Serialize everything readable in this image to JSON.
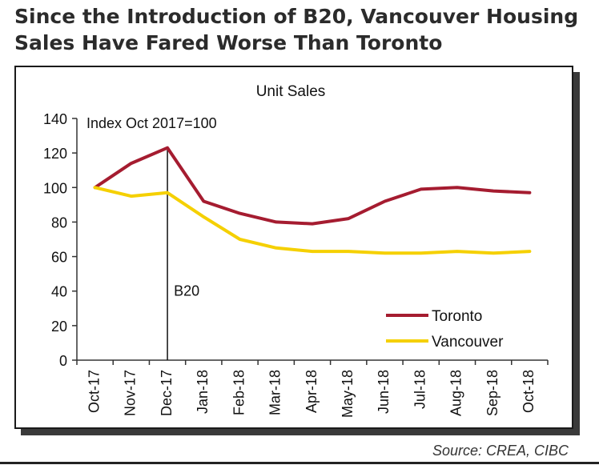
{
  "headline": "Since the Introduction of B20, Vancouver Housing Sales Have Fared Worse Than Toronto",
  "source": "Source: CREA, CIBC",
  "chart_data": {
    "type": "line",
    "title": "Unit Sales",
    "index_note": "Index Oct 2017=100",
    "marker": {
      "label": "B20",
      "category": "Dec-17"
    },
    "categories": [
      "Oct-17",
      "Nov-17",
      "Dec-17",
      "Jan-18",
      "Feb-18",
      "Mar-18",
      "Apr-18",
      "May-18",
      "Jun-18",
      "Jul-18",
      "Aug-18",
      "Sep-18",
      "Oct-18"
    ],
    "ylim": [
      0,
      140
    ],
    "yticks": [
      0,
      20,
      40,
      60,
      80,
      100,
      120,
      140
    ],
    "grid": false,
    "legend": "lower-right",
    "series": [
      {
        "name": "Toronto",
        "color": "#a51c30",
        "values": [
          100,
          114,
          123,
          92,
          85,
          80,
          79,
          82,
          92,
          99,
          100,
          98,
          97
        ]
      },
      {
        "name": "Vancouver",
        "color": "#f5d000",
        "values": [
          100,
          95,
          97,
          83,
          70,
          65,
          63,
          63,
          62,
          62,
          63,
          62,
          63
        ]
      }
    ]
  }
}
